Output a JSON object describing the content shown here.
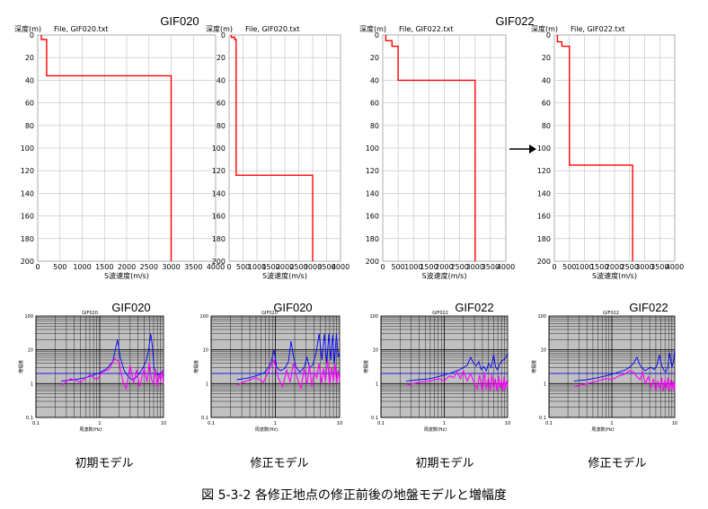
{
  "figure_caption": "図 5-3-2 各修正地点の修正前後の地盤モデルと増幅度",
  "colors": {
    "profile": "#ff0000",
    "amp_blue": "#0000ff",
    "amp_magenta": "#ff00ff",
    "amp_bg": "#c0c0c0"
  },
  "chart_data": [
    {
      "type": "line",
      "panel": "profile-gif020-initial",
      "site_label": "GIF020",
      "ylabel": "深度(m)",
      "file_label": "File, GIF020.txt",
      "xlabel": "S波速度(m/s)",
      "xlim": [
        0,
        4000
      ],
      "ylim": [
        0,
        200
      ],
      "xticks": [
        "0",
        "500",
        "1000",
        "1500",
        "2000",
        "2500",
        "3000",
        "3500",
        "4000"
      ],
      "yticks": [
        "0",
        "20",
        "40",
        "60",
        "80",
        "100",
        "120",
        "140",
        "160",
        "180",
        "200"
      ],
      "profile": [
        [
          80,
          0
        ],
        [
          80,
          4
        ],
        [
          200,
          4
        ],
        [
          200,
          36
        ],
        [
          3000,
          36
        ],
        [
          3000,
          200
        ]
      ]
    },
    {
      "type": "line",
      "panel": "profile-gif020-revised",
      "site_label": "",
      "ylabel": "深度(m)",
      "file_label": "File, GIF020.txt",
      "xlabel": "S波速度(m/s)",
      "xlim": [
        0,
        4000
      ],
      "ylim": [
        0,
        200
      ],
      "xticks": [
        "0",
        "500",
        "1000",
        "1500",
        "2000",
        "2500",
        "3000",
        "3500",
        "4000"
      ],
      "yticks": [
        "0",
        "20",
        "40",
        "60",
        "80",
        "100",
        "120",
        "140",
        "160",
        "180",
        "200"
      ],
      "profile": [
        [
          80,
          0
        ],
        [
          80,
          2
        ],
        [
          200,
          2
        ],
        [
          200,
          4
        ],
        [
          250,
          4
        ],
        [
          250,
          24
        ],
        [
          250,
          124
        ],
        [
          3000,
          124
        ],
        [
          3000,
          200
        ]
      ]
    },
    {
      "type": "line",
      "panel": "profile-gif022-initial",
      "site_label": "GIF022",
      "ylabel": "深度(m)",
      "file_label": "File, GIF022.txt",
      "xlabel": "S波速度(m/s)",
      "xlim": [
        0,
        4000
      ],
      "ylim": [
        0,
        200
      ],
      "xticks": [
        "0",
        "500",
        "1000",
        "1500",
        "2000",
        "2500",
        "3000",
        "3500",
        "4000"
      ],
      "yticks": [
        "0",
        "20",
        "40",
        "60",
        "80",
        "100",
        "120",
        "140",
        "160",
        "180",
        "200"
      ],
      "profile": [
        [
          100,
          0
        ],
        [
          100,
          5
        ],
        [
          300,
          5
        ],
        [
          300,
          10
        ],
        [
          500,
          10
        ],
        [
          500,
          39
        ],
        [
          500,
          40
        ],
        [
          3000,
          40
        ],
        [
          3000,
          200
        ]
      ]
    },
    {
      "type": "line",
      "panel": "profile-gif022-revised",
      "site_label": "",
      "ylabel": "深度(m)",
      "file_label": "File, GIF022.txt",
      "xlabel": "S波速度(m/s)",
      "xlim": [
        0,
        4000
      ],
      "ylim": [
        0,
        200
      ],
      "xticks": [
        "0",
        "500",
        "1000",
        "1500",
        "2000",
        "2500",
        "3000",
        "3500",
        "4000"
      ],
      "yticks": [
        "0",
        "20",
        "40",
        "60",
        "80",
        "100",
        "120",
        "140",
        "160",
        "180",
        "200"
      ],
      "profile": [
        [
          100,
          0
        ],
        [
          100,
          6
        ],
        [
          250,
          6
        ],
        [
          250,
          10
        ],
        [
          500,
          10
        ],
        [
          500,
          115
        ],
        [
          2600,
          115
        ],
        [
          2600,
          200
        ]
      ]
    },
    {
      "type": "line",
      "panel": "amp-gif020-initial",
      "site_label": "GIF020",
      "small_title": "GIF020",
      "xlabel": "周波数(Hz)",
      "ylabel": "増幅度",
      "x_log": true,
      "y_log": true,
      "xlim": [
        0.1,
        10
      ],
      "ylim": [
        0.1,
        100
      ],
      "xticks": [
        "0.1",
        "1",
        "10"
      ],
      "yticks": [
        "0.1",
        "1",
        "10",
        "100"
      ],
      "ref_level": 2,
      "series": [
        {
          "name": "",
          "color": "blue",
          "x": [
            0.25,
            0.4,
            0.6,
            0.8,
            1.0,
            1.3,
            1.6,
            1.9,
            2.1,
            2.4,
            2.8,
            3.2,
            3.7,
            4.2,
            4.8,
            5.3,
            5.8,
            6.3,
            6.7,
            7.1,
            7.5,
            8.2,
            9,
            10
          ],
          "y": [
            1.2,
            1.3,
            1.5,
            1.8,
            2.1,
            2.8,
            4.5,
            20,
            6,
            2.5,
            1.6,
            1.3,
            1.5,
            2.0,
            3.0,
            4.5,
            9,
            30,
            12,
            3,
            2.2,
            1.8,
            2,
            2.4
          ]
        },
        {
          "name": "",
          "color": "magenta",
          "x": [
            0.25,
            0.35,
            0.5,
            0.7,
            0.9,
            1.1,
            1.4,
            1.7,
            2.0,
            2.3,
            2.6,
            3,
            3.4,
            3.8,
            4.2,
            4.6,
            5,
            5.5,
            6,
            6.5,
            7,
            7.5,
            8,
            8.5,
            9,
            9.5,
            10
          ],
          "y": [
            0.9,
            1.4,
            1.1,
            1.8,
            1.3,
            2.2,
            2.6,
            5.5,
            4.5,
            1.2,
            0.7,
            3.5,
            1.0,
            2.6,
            0.8,
            1.6,
            2.8,
            1.1,
            4.2,
            1.3,
            1.0,
            2.6,
            0.8,
            1.9,
            1.2,
            2.5,
            1.0
          ]
        }
      ]
    },
    {
      "type": "line",
      "panel": "amp-gif020-revised",
      "site_label": "GIF020",
      "small_title": "GIF020",
      "xlabel": "周波数(Hz)",
      "ylabel": "増幅度",
      "x_log": true,
      "y_log": true,
      "xlim": [
        0.1,
        10
      ],
      "ylim": [
        0.1,
        100
      ],
      "xticks": [
        "0.1",
        "1",
        "10"
      ],
      "yticks": [
        "0.1",
        "1",
        "10",
        "100"
      ],
      "ref_level": 2,
      "series": [
        {
          "name": "",
          "color": "blue",
          "x": [
            0.25,
            0.4,
            0.55,
            0.7,
            0.85,
            0.95,
            1.05,
            1.2,
            1.4,
            1.6,
            1.75,
            1.9,
            2.1,
            2.4,
            2.8,
            3.1,
            3.4,
            3.8,
            4.3,
            4.8,
            5.3,
            5.8,
            6.3,
            6.8,
            7.3,
            7.8,
            8.3,
            8.9,
            9.5,
            10
          ],
          "y": [
            1.3,
            1.5,
            1.8,
            2.2,
            4,
            10,
            3,
            2.4,
            2.8,
            4.5,
            18,
            7,
            3,
            2.2,
            3,
            6,
            3,
            3.5,
            8,
            30,
            5,
            30,
            4,
            30,
            5,
            28,
            4,
            30,
            6,
            8
          ]
        },
        {
          "name": "",
          "color": "magenta",
          "x": [
            0.25,
            0.35,
            0.5,
            0.65,
            0.8,
            0.95,
            1.1,
            1.3,
            1.5,
            1.7,
            1.9,
            2.2,
            2.5,
            2.8,
            3.1,
            3.4,
            3.7,
            4,
            4.4,
            4.8,
            5.2,
            5.6,
            6,
            6.5,
            7,
            7.5,
            8,
            8.5,
            9,
            9.5,
            10
          ],
          "y": [
            0.9,
            1.2,
            1.5,
            1.1,
            2.5,
            5,
            1.5,
            0.8,
            2.5,
            1.1,
            4,
            1.4,
            0.7,
            2.8,
            1.0,
            3.5,
            0.8,
            2.2,
            1.5,
            4,
            1.0,
            2.8,
            1.2,
            5,
            0.9,
            3,
            1.2,
            4,
            1.0,
            2.5,
            1.2
          ]
        }
      ]
    },
    {
      "type": "line",
      "panel": "amp-gif022-initial",
      "site_label": "GIF022",
      "small_title": "GIF022",
      "xlabel": "周波数(Hz)",
      "ylabel": "増幅度",
      "x_log": true,
      "y_log": true,
      "xlim": [
        0.1,
        10
      ],
      "ylim": [
        0.1,
        100
      ],
      "xticks": [
        "0.1",
        "1",
        "10"
      ],
      "yticks": [
        "0.1",
        "1",
        "10",
        "100"
      ],
      "ref_level": 2,
      "series": [
        {
          "name": "",
          "color": "blue",
          "x": [
            0.25,
            0.4,
            0.6,
            0.8,
            1.0,
            1.2,
            1.4,
            1.7,
            2.0,
            2.3,
            2.6,
            2.9,
            3.2,
            3.5,
            3.8,
            4.2,
            4.6,
            5,
            5.5,
            6,
            6.5,
            7,
            7.5,
            8.5,
            9.5,
            10
          ],
          "y": [
            1.2,
            1.3,
            1.4,
            1.6,
            1.8,
            2,
            2.2,
            2.5,
            3,
            3.5,
            6,
            4,
            3.3,
            4.5,
            2.6,
            3.2,
            2.4,
            4,
            3,
            7,
            3,
            2.5,
            4,
            5,
            6,
            8
          ]
        },
        {
          "name": "",
          "color": "magenta",
          "x": [
            0.25,
            0.4,
            0.6,
            0.8,
            1.0,
            1.2,
            1.4,
            1.6,
            1.8,
            2.0,
            2.3,
            2.6,
            3,
            3.3,
            3.6,
            4,
            4.3,
            4.6,
            5,
            5.3,
            5.6,
            6,
            6.4,
            6.8,
            7.2,
            7.6,
            8,
            8.4,
            8.8,
            9.2,
            9.6,
            10
          ],
          "y": [
            0.9,
            1.1,
            1.2,
            1.4,
            1.2,
            1.7,
            1.5,
            2.2,
            1.4,
            2.4,
            1.2,
            2,
            1.0,
            0.7,
            1.8,
            0.6,
            2.2,
            0.7,
            1.5,
            0.6,
            1.9,
            0.7,
            1.4,
            0.6,
            1.7,
            0.7,
            1.3,
            0.6,
            1.6,
            0.7,
            1.2,
            0.8
          ]
        }
      ]
    },
    {
      "type": "line",
      "panel": "amp-gif022-revised",
      "site_label": "GIF022",
      "small_title": "GIF022",
      "xlabel": "周波数(Hz)",
      "ylabel": "増幅度",
      "x_log": true,
      "y_log": true,
      "xlim": [
        0.1,
        10
      ],
      "ylim": [
        0.1,
        100
      ],
      "xticks": [
        "0.1",
        "1",
        "10"
      ],
      "yticks": [
        "0.1",
        "1",
        "10",
        "100"
      ],
      "ref_level": 2,
      "series": [
        {
          "name": "",
          "color": "blue",
          "x": [
            0.25,
            0.4,
            0.6,
            0.8,
            1.0,
            1.3,
            1.6,
            1.9,
            2.2,
            2.5,
            2.8,
            3.1,
            3.4,
            3.8,
            4.2,
            4.7,
            5.2,
            5.7,
            6.2,
            6.7,
            7.2,
            7.7,
            8.3,
            9,
            9.6,
            10
          ],
          "y": [
            1.2,
            1.3,
            1.5,
            1.7,
            1.9,
            2.2,
            2.5,
            3,
            4,
            6,
            3.5,
            2.8,
            2.4,
            2.8,
            3,
            2.6,
            3.4,
            7,
            3.5,
            2.5,
            2.2,
            3,
            8,
            3,
            5,
            10
          ]
        },
        {
          "name": "",
          "color": "magenta",
          "x": [
            0.25,
            0.4,
            0.6,
            0.8,
            1.0,
            1.3,
            1.6,
            1.9,
            2.2,
            2.5,
            2.8,
            3.1,
            3.4,
            3.8,
            4.2,
            4.6,
            5,
            5.4,
            5.8,
            6.2,
            6.6,
            7,
            7.4,
            7.8,
            8.2,
            8.6,
            9,
            9.4,
            9.8,
            10
          ],
          "y": [
            0.8,
            1.0,
            1.2,
            1.4,
            1.3,
            1.7,
            1.9,
            2.4,
            2.2,
            1.6,
            1.3,
            2.2,
            1.0,
            1.6,
            0.8,
            1.4,
            0.6,
            1.2,
            0.7,
            1.5,
            0.6,
            1.3,
            0.7,
            1.5,
            0.6,
            1.3,
            0.7,
            1.2,
            0.6,
            1.0
          ]
        }
      ]
    }
  ],
  "model_captions": [
    "初期モデル",
    "修正モデル",
    "初期モデル",
    "修正モデル"
  ]
}
